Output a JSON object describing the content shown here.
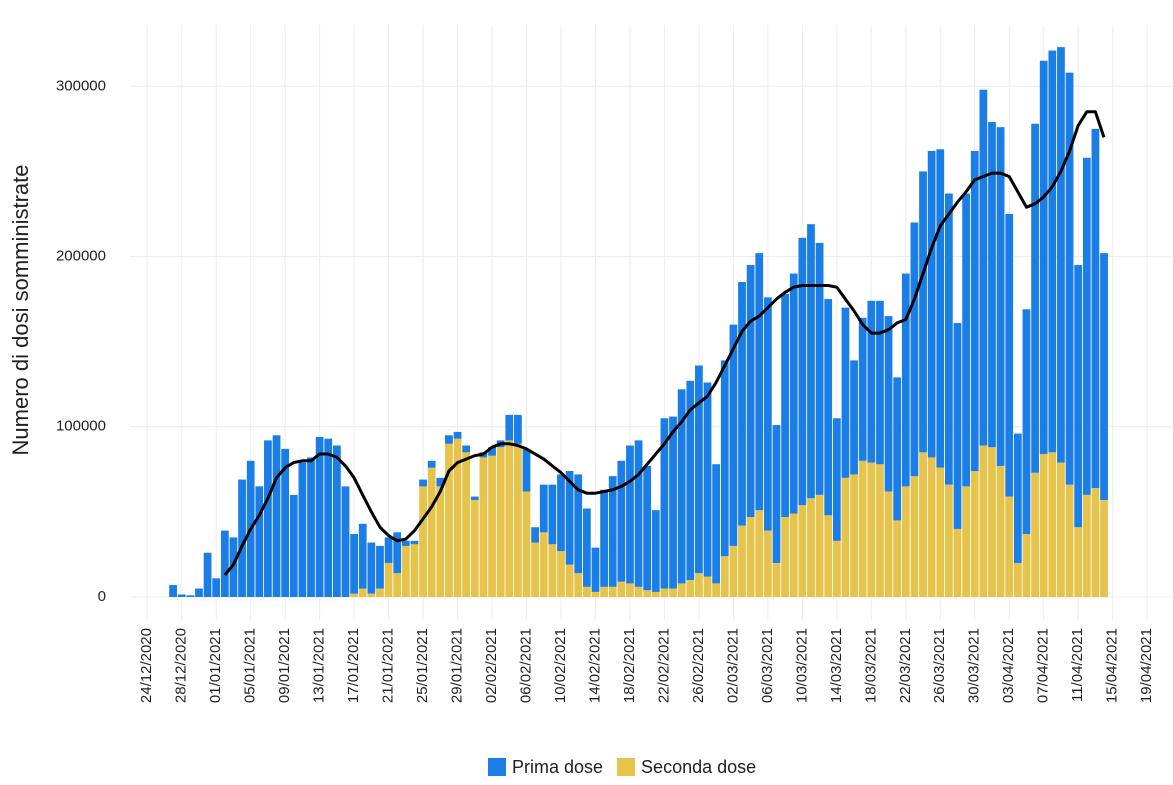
{
  "chart_data": {
    "type": "stacked_bar",
    "y_label": "Numero di dosi somministrate",
    "x": [
      "27/12/2020",
      "28/12/2020",
      "29/12/2020",
      "30/12/2020",
      "31/12/2020",
      "01/01/2021",
      "02/01/2021",
      "03/01/2021",
      "04/01/2021",
      "05/01/2021",
      "06/01/2021",
      "07/01/2021",
      "08/01/2021",
      "09/01/2021",
      "10/01/2021",
      "11/01/2021",
      "12/01/2021",
      "13/01/2021",
      "14/01/2021",
      "15/01/2021",
      "16/01/2021",
      "17/01/2021",
      "18/01/2021",
      "19/01/2021",
      "20/01/2021",
      "21/01/2021",
      "22/01/2021",
      "23/01/2021",
      "24/01/2021",
      "25/01/2021",
      "26/01/2021",
      "27/01/2021",
      "28/01/2021",
      "29/01/2021",
      "30/01/2021",
      "31/01/2021",
      "01/02/2021",
      "02/02/2021",
      "03/02/2021",
      "04/02/2021",
      "05/02/2021",
      "06/02/2021",
      "07/02/2021",
      "08/02/2021",
      "09/02/2021",
      "10/02/2021",
      "11/02/2021",
      "12/02/2021",
      "13/02/2021",
      "14/02/2021",
      "15/02/2021",
      "16/02/2021",
      "17/02/2021",
      "18/02/2021",
      "19/02/2021",
      "20/02/2021",
      "21/02/2021",
      "22/02/2021",
      "23/02/2021",
      "24/02/2021",
      "25/02/2021",
      "26/02/2021",
      "27/02/2021",
      "28/02/2021",
      "01/03/2021",
      "02/03/2021",
      "03/03/2021",
      "04/03/2021",
      "05/03/2021",
      "06/03/2021",
      "07/03/2021",
      "08/03/2021",
      "09/03/2021",
      "10/03/2021",
      "11/03/2021",
      "12/03/2021",
      "13/03/2021",
      "14/03/2021",
      "15/03/2021",
      "16/03/2021",
      "17/03/2021",
      "18/03/2021",
      "19/03/2021",
      "20/03/2021",
      "21/03/2021",
      "22/03/2021",
      "23/03/2021",
      "24/03/2021",
      "25/03/2021",
      "26/03/2021",
      "27/03/2021",
      "28/03/2021",
      "29/03/2021",
      "30/03/2021",
      "31/03/2021",
      "01/04/2021",
      "02/04/2021",
      "03/04/2021",
      "04/04/2021",
      "05/04/2021",
      "06/04/2021",
      "07/04/2021",
      "08/04/2021",
      "09/04/2021",
      "10/04/2021",
      "11/04/2021",
      "12/04/2021",
      "13/04/2021",
      "14/04/2021"
    ],
    "series": [
      {
        "name": "Seconda dose",
        "color": "#e6c34b",
        "values": [
          0,
          0,
          0,
          0,
          0,
          0,
          0,
          0,
          0,
          0,
          0,
          0,
          0,
          0,
          0,
          0,
          0,
          0,
          0,
          0,
          0,
          2000,
          5000,
          2000,
          5000,
          20000,
          14000,
          30000,
          31000,
          65000,
          76000,
          65000,
          90000,
          93000,
          85000,
          57000,
          82000,
          83000,
          88000,
          92000,
          90000,
          62000,
          32000,
          38000,
          31000,
          27000,
          19000,
          14000,
          6000,
          3000,
          6000,
          6000,
          9000,
          8000,
          6000,
          4000,
          3000,
          5000,
          5000,
          8000,
          10000,
          14000,
          12000,
          8000,
          24000,
          30000,
          42000,
          47000,
          51000,
          39000,
          20000,
          47000,
          49000,
          54000,
          58000,
          60000,
          48000,
          33000,
          70000,
          72000,
          80000,
          79000,
          78000,
          62000,
          45000,
          65000,
          71000,
          85000,
          82000,
          76000,
          66000,
          40000,
          65000,
          74000,
          89000,
          88000,
          77000,
          59000,
          20000,
          37000,
          73000,
          84000,
          85000,
          79000,
          66000,
          41000,
          60000,
          64000,
          57000
        ]
      },
      {
        "name": "Prima dose",
        "color": "#1a7ee6",
        "values": [
          7000,
          1500,
          1000,
          5000,
          26000,
          11000,
          39000,
          35000,
          69000,
          80000,
          65000,
          92000,
          95000,
          87000,
          60000,
          79000,
          82000,
          94000,
          93000,
          89000,
          65000,
          35000,
          38000,
          30000,
          25000,
          15000,
          24000,
          3000,
          2000,
          4000,
          4000,
          5000,
          5000,
          4000,
          4000,
          2000,
          3000,
          5000,
          4000,
          15000,
          17000,
          25000,
          9000,
          28000,
          35000,
          45000,
          55000,
          58000,
          46000,
          26000,
          57000,
          65000,
          71000,
          81000,
          86000,
          73000,
          48000,
          100000,
          101000,
          114000,
          117000,
          122000,
          114000,
          70000,
          115000,
          130000,
          143000,
          148000,
          151000,
          137000,
          81000,
          131000,
          141000,
          157000,
          161000,
          148000,
          127000,
          72000,
          100000,
          67000,
          84000,
          95000,
          96000,
          103000,
          84000,
          125000,
          149000,
          165000,
          180000,
          187000,
          171000,
          121000,
          172000,
          188000,
          209000,
          191000,
          199000,
          166000,
          76000,
          132000,
          205000,
          231000,
          236000,
          244000,
          242000,
          154000,
          198000,
          211000,
          145000
        ]
      }
    ],
    "trend": {
      "color": "#000000",
      "values": [
        null,
        null,
        null,
        null,
        null,
        null,
        13000,
        19000,
        30000,
        40000,
        48000,
        58000,
        70000,
        76000,
        79000,
        80000,
        80000,
        84000,
        84000,
        82000,
        77000,
        70000,
        60000,
        50000,
        41000,
        36000,
        33000,
        34000,
        39000,
        46000,
        53000,
        62000,
        74000,
        79000,
        81000,
        83000,
        84000,
        88000,
        90000,
        90000,
        89000,
        87000,
        84000,
        81000,
        77000,
        73000,
        68000,
        63000,
        61000,
        61000,
        62000,
        63000,
        65000,
        68000,
        72000,
        78000,
        84000,
        90000,
        97000,
        103000,
        110000,
        114000,
        118000,
        126000,
        136000,
        146000,
        156000,
        162000,
        165000,
        170000,
        175000,
        179000,
        182000,
        183000,
        183000,
        183000,
        183000,
        182000,
        175000,
        168000,
        160000,
        155000,
        155000,
        157000,
        161000,
        163000,
        175000,
        190000,
        205000,
        218000,
        225000,
        232000,
        238000,
        245000,
        247000,
        249000,
        249000,
        247000,
        238000,
        229000,
        231000,
        235000,
        241000,
        250000,
        262000,
        277000,
        285000,
        285000,
        270000
      ]
    },
    "xlim": [
      "22/12/2020",
      "22/04/2021"
    ],
    "xticks": [
      "24/12/2020",
      "28/12/2020",
      "01/01/2021",
      "05/01/2021",
      "09/01/2021",
      "13/01/2021",
      "17/01/2021",
      "21/01/2021",
      "25/01/2021",
      "29/01/2021",
      "02/02/2021",
      "06/02/2021",
      "10/02/2021",
      "14/02/2021",
      "18/02/2021",
      "22/02/2021",
      "26/02/2021",
      "02/03/2021",
      "06/03/2021",
      "10/03/2021",
      "14/03/2021",
      "18/03/2021",
      "22/03/2021",
      "26/03/2021",
      "30/03/2021",
      "03/04/2021",
      "07/04/2021",
      "11/04/2021",
      "15/04/2021",
      "19/04/2021"
    ],
    "ylim": [
      -13500,
      336000
    ],
    "yticks": [
      0,
      100000,
      200000,
      300000
    ],
    "grid": true,
    "legend": "bottom"
  }
}
